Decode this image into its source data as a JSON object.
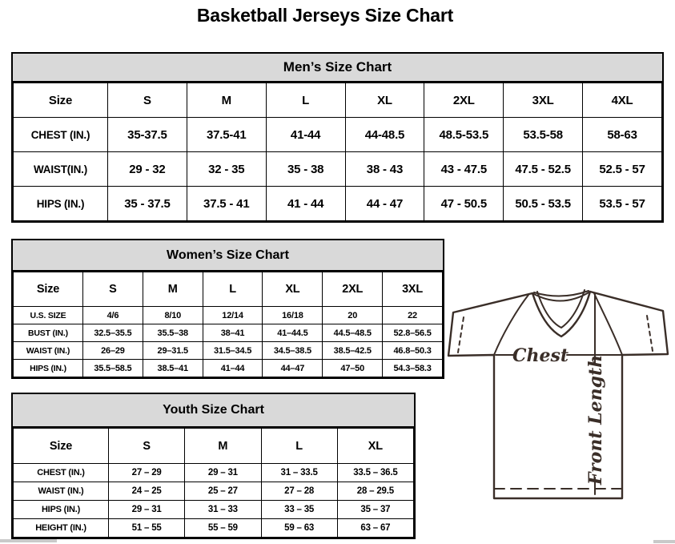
{
  "page_title": "Basketball Jerseys Size Chart",
  "colors": {
    "header_band": "#d9d9d9",
    "border": "#000000",
    "jersey_outline": "#3a2e28",
    "background": "#ffffff"
  },
  "tables": [
    {
      "key": "men",
      "title": "Men’s Size Chart",
      "size_label": "Size",
      "columns": [
        "S",
        "M",
        "L",
        "XL",
        "2XL",
        "3XL",
        "4XL"
      ],
      "rows": [
        {
          "label": "CHEST (IN.)",
          "values": [
            "35-37.5",
            "37.5-41",
            "41-44",
            "44-48.5",
            "48.5-53.5",
            "53.5-58",
            "58-63"
          ]
        },
        {
          "label": "WAIST(IN.)",
          "values": [
            "29 - 32",
            "32 - 35",
            "35 - 38",
            "38 - 43",
            "43 - 47.5",
            "47.5 - 52.5",
            "52.5 - 57"
          ]
        },
        {
          "label": "HIPS (IN.)",
          "values": [
            "35 - 37.5",
            "37.5 - 41",
            "41 - 44",
            "44 - 47",
            "47 - 50.5",
            "50.5 - 53.5",
            "53.5 - 57"
          ]
        }
      ]
    },
    {
      "key": "women",
      "title": "Women’s Size Chart",
      "size_label": "Size",
      "columns": [
        "S",
        "M",
        "L",
        "XL",
        "2XL",
        "3XL"
      ],
      "rows": [
        {
          "label": "U.S. SIZE",
          "values": [
            "4/6",
            "8/10",
            "12/14",
            "16/18",
            "20",
            "22"
          ]
        },
        {
          "label": "BUST (IN.)",
          "values": [
            "32.5–35.5",
            "35.5–38",
            "38–41",
            "41–44.5",
            "44.5–48.5",
            "52.8–56.5"
          ]
        },
        {
          "label": "WAIST (IN.)",
          "values": [
            "26–29",
            "29–31.5",
            "31.5–34.5",
            "34.5–38.5",
            "38.5–42.5",
            "46.8–50.3"
          ]
        },
        {
          "label": "HIPS (IN.)",
          "values": [
            "35.5–58.5",
            "38.5–41",
            "41–44",
            "44–47",
            "47–50",
            "54.3–58.3"
          ]
        }
      ]
    },
    {
      "key": "youth",
      "title": "Youth Size Chart",
      "size_label": "Size",
      "columns": [
        "S",
        "M",
        "L",
        "XL"
      ],
      "rows": [
        {
          "label": "CHEST (IN.)",
          "values": [
            "27 – 29",
            "29 – 31",
            "31 – 33.5",
            "33.5 – 36.5"
          ]
        },
        {
          "label": "WAIST (IN.)",
          "values": [
            "24 – 25",
            "25 – 27",
            "27 – 28",
            "28 – 29.5"
          ]
        },
        {
          "label": "HIPS (IN.)",
          "values": [
            "29 – 31",
            "31 – 33",
            "33 – 35",
            "35 – 37"
          ]
        },
        {
          "label": "HEIGHT (IN.)",
          "values": [
            "51 – 55",
            "55 – 59",
            "59 – 63",
            "63 – 67"
          ]
        }
      ]
    }
  ],
  "diagram": {
    "chest_label": "Chest",
    "front_length_label": "Front Length"
  }
}
